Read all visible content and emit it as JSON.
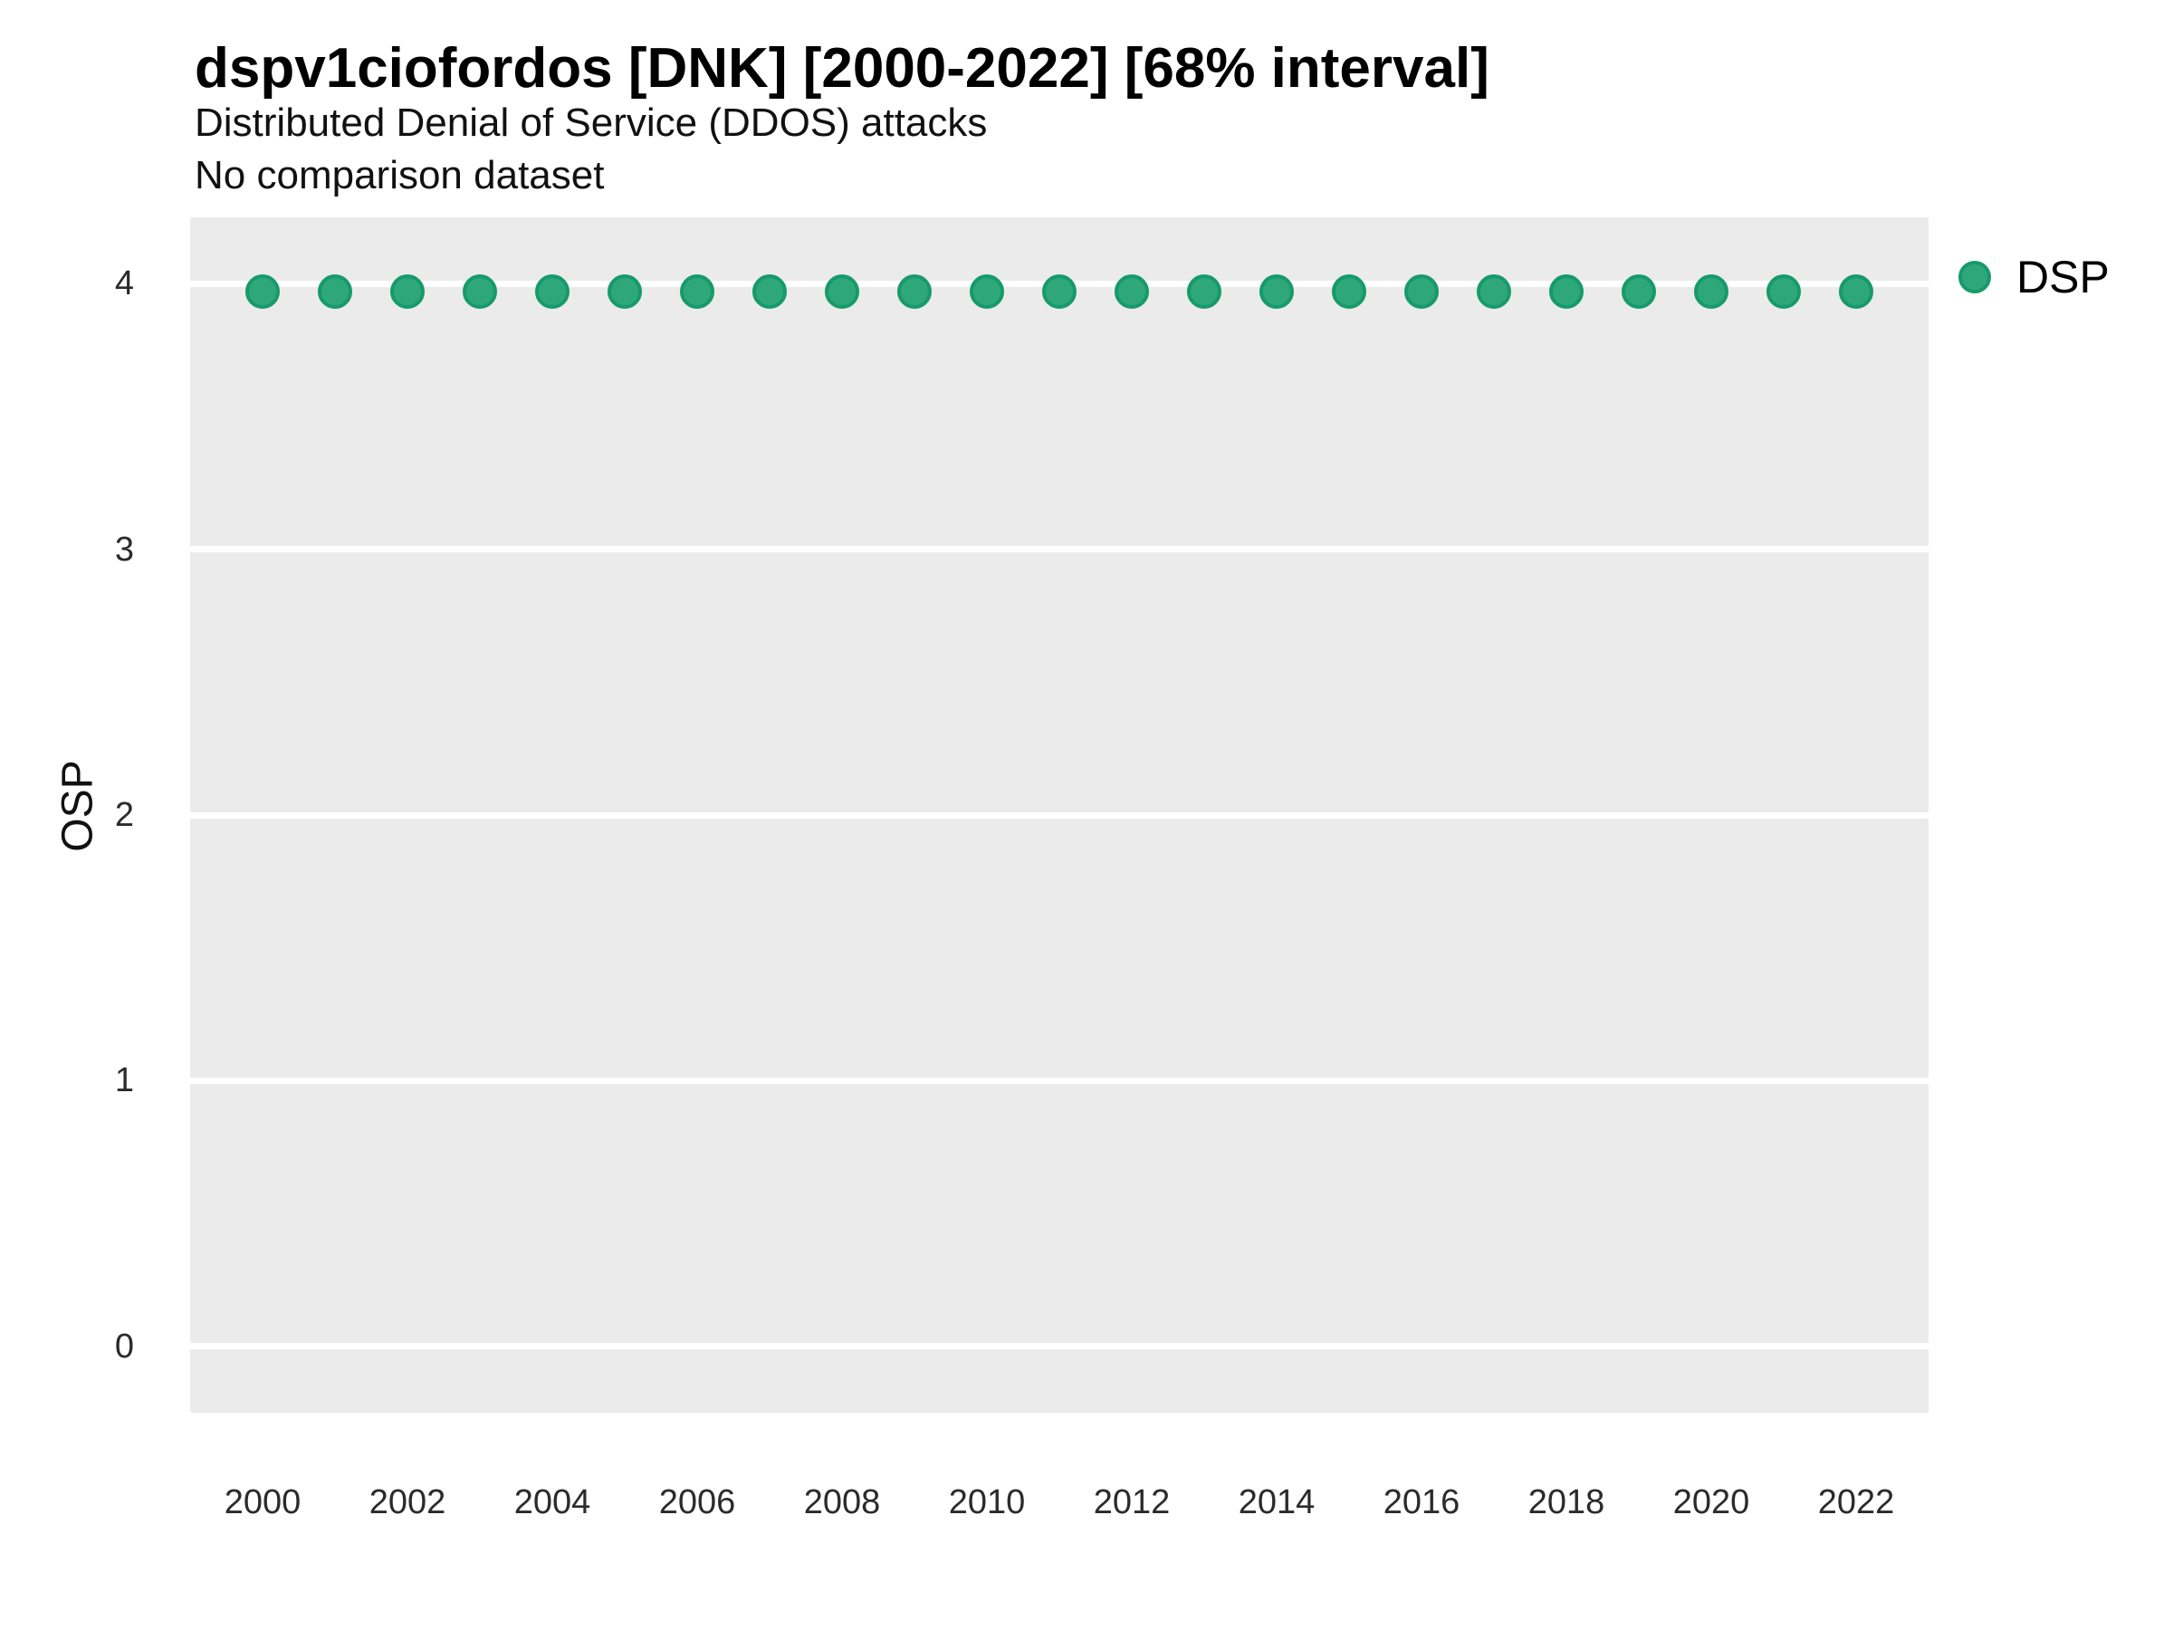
{
  "chart_data": {
    "type": "scatter",
    "title": "dspv1ciofordos [DNK] [2000-2022] [68% interval]",
    "subtitle": "Distributed Denial of Service (DDOS) attacks",
    "note": "No comparison dataset",
    "xlabel": "",
    "ylabel": "OSP",
    "xlim": [
      1999,
      2023
    ],
    "ylim": [
      -0.25,
      4.25
    ],
    "x_tick_labels": [
      2000,
      2002,
      2004,
      2006,
      2008,
      2010,
      2012,
      2014,
      2016,
      2018,
      2020,
      2022
    ],
    "y_tick_labels": [
      0,
      1,
      2,
      3,
      4
    ],
    "grid": "horizontal-major-only, white lines on gray panel",
    "legend": {
      "position": "right-top",
      "entries": [
        {
          "label": "DSP",
          "marker": "circle"
        }
      ]
    },
    "series": [
      {
        "name": "DSP",
        "x": [
          2000,
          2001,
          2002,
          2003,
          2004,
          2005,
          2006,
          2007,
          2008,
          2009,
          2010,
          2011,
          2012,
          2013,
          2014,
          2015,
          2016,
          2017,
          2018,
          2019,
          2020,
          2021,
          2022
        ],
        "y": [
          3.97,
          3.97,
          3.97,
          3.97,
          3.97,
          3.97,
          3.97,
          3.97,
          3.97,
          3.97,
          3.97,
          3.97,
          3.97,
          3.97,
          3.97,
          3.97,
          3.97,
          3.97,
          3.97,
          3.97,
          3.97,
          3.97,
          3.97
        ]
      }
    ]
  },
  "colors": {
    "point_fill": "#2ea87b",
    "point_border": "#179a6b",
    "panel_background": "#ebebeb",
    "gridline": "#ffffff",
    "tick_label": "#2b2b2b",
    "title_text": "#000000"
  }
}
